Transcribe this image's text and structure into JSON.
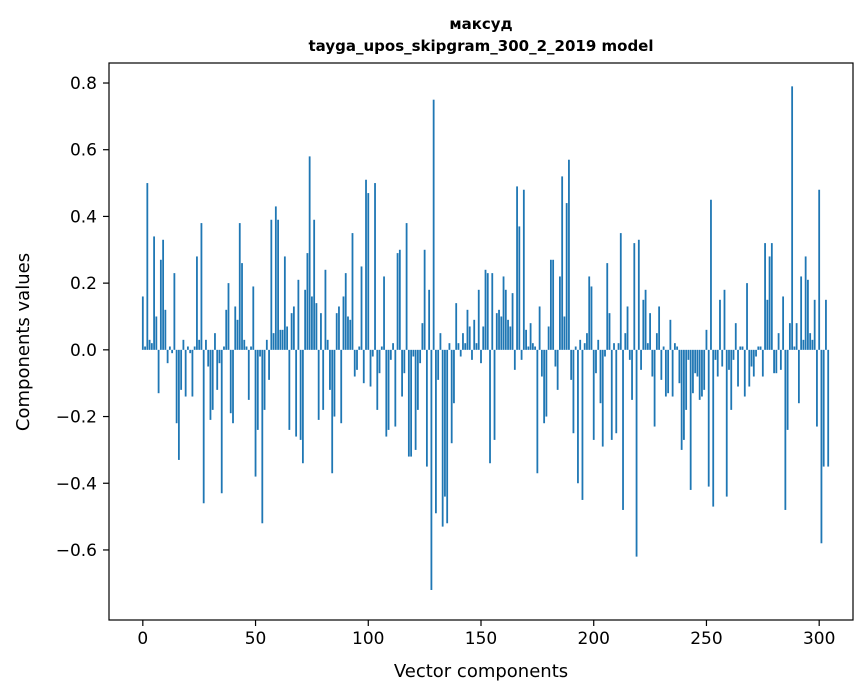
{
  "chart_data": {
    "type": "bar",
    "title": [
      "максуд",
      "tayga_upos_skipgram_300_2_2019 model"
    ],
    "xlabel": "Vector components",
    "ylabel": "Components values",
    "xlim": [
      -15,
      315
    ],
    "ylim": [
      -0.81,
      0.86
    ],
    "xticks": [
      0,
      50,
      100,
      150,
      200,
      250,
      300
    ],
    "xtick_labels": [
      "0",
      "50",
      "100",
      "150",
      "200",
      "250",
      "300"
    ],
    "yticks": [
      -0.6,
      -0.4,
      -0.2,
      0.0,
      0.2,
      0.4,
      0.6,
      0.8
    ],
    "ytick_labels": [
      "−0.6",
      "−0.4",
      "−0.2",
      "0.0",
      "0.2",
      "0.4",
      "0.6",
      "0.8"
    ],
    "grid": false,
    "bar_color": "#1f77b4",
    "x_start": 0,
    "values": [
      0.16,
      0.01,
      0.5,
      0.03,
      0.02,
      0.34,
      0.1,
      -0.13,
      0.27,
      0.33,
      0.12,
      -0.04,
      0.01,
      -0.01,
      0.23,
      -0.22,
      -0.33,
      -0.12,
      0.03,
      -0.14,
      0.01,
      -0.01,
      -0.14,
      0.01,
      0.28,
      0.03,
      0.38,
      -0.46,
      0.03,
      -0.05,
      -0.21,
      -0.18,
      0.05,
      -0.12,
      -0.04,
      -0.43,
      0.01,
      0.12,
      0.2,
      -0.19,
      -0.22,
      0.13,
      0.09,
      0.38,
      0.26,
      0.03,
      0.01,
      -0.15,
      0.01,
      0.19,
      -0.38,
      -0.24,
      -0.02,
      -0.52,
      -0.18,
      0.03,
      -0.09,
      0.39,
      0.05,
      0.43,
      0.39,
      0.06,
      0.06,
      0.28,
      0.07,
      -0.24,
      0.11,
      0.13,
      -0.26,
      0.21,
      -0.27,
      -0.34,
      0.18,
      0.29,
      0.58,
      0.16,
      0.39,
      0.14,
      -0.21,
      0.11,
      -0.18,
      0.24,
      0.03,
      -0.12,
      -0.37,
      -0.2,
      0.11,
      0.13,
      -0.22,
      0.16,
      0.23,
      0.1,
      0.09,
      0.35,
      -0.08,
      -0.06,
      0.01,
      0.25,
      -0.1,
      0.51,
      0.47,
      -0.11,
      -0.02,
      0.5,
      -0.18,
      -0.07,
      0.01,
      0.22,
      -0.26,
      -0.24,
      -0.03,
      0.02,
      -0.23,
      0.29,
      0.3,
      -0.14,
      -0.07,
      0.38,
      -0.32,
      -0.32,
      -0.02,
      -0.3,
      -0.18,
      -0.04,
      0.08,
      0.3,
      -0.35,
      0.18,
      -0.72,
      0.75,
      -0.49,
      -0.09,
      0.05,
      -0.53,
      -0.44,
      -0.52,
      0.02,
      -0.28,
      -0.16,
      0.14,
      0.02,
      -0.02,
      0.05,
      0.02,
      0.12,
      0.07,
      -0.03,
      0.09,
      0.02,
      0.18,
      -0.04,
      0.07,
      0.24,
      0.23,
      -0.34,
      0.23,
      -0.27,
      0.11,
      0.12,
      0.1,
      0.22,
      0.18,
      0.09,
      0.07,
      0.17,
      -0.06,
      0.49,
      0.37,
      -0.03,
      0.48,
      0.06,
      0.01,
      0.08,
      0.02,
      0.01,
      -0.37,
      0.13,
      -0.08,
      -0.22,
      -0.2,
      0.07,
      0.27,
      0.27,
      -0.05,
      -0.12,
      0.22,
      0.52,
      0.1,
      0.44,
      0.57,
      -0.09,
      -0.25,
      0.01,
      -0.4,
      0.03,
      -0.45,
      0.02,
      0.05,
      0.22,
      0.19,
      -0.27,
      -0.07,
      0.03,
      -0.16,
      -0.29,
      -0.02,
      0.26,
      0.11,
      -0.27,
      0.02,
      -0.25,
      0.02,
      0.35,
      -0.48,
      0.05,
      0.13,
      -0.03,
      -0.15,
      0.32,
      -0.62,
      0.33,
      -0.06,
      0.15,
      0.18,
      0.02,
      0.11,
      -0.08,
      -0.23,
      0.05,
      0.13,
      -0.09,
      0.01,
      -0.14,
      -0.13,
      0.09,
      -0.14,
      0.02,
      0.01,
      -0.1,
      -0.3,
      -0.27,
      -0.18,
      -0.03,
      -0.42,
      -0.13,
      -0.07,
      -0.08,
      -0.15,
      -0.14,
      -0.12,
      0.06,
      -0.41,
      0.45,
      -0.47,
      -0.03,
      -0.08,
      0.15,
      -0.05,
      0.18,
      -0.44,
      -0.06,
      -0.18,
      -0.03,
      0.08,
      -0.11,
      0.01,
      0.01,
      -0.14,
      0.2,
      -0.11,
      -0.05,
      -0.08,
      -0.02,
      0.01,
      0.01,
      -0.08,
      0.32,
      0.15,
      0.28,
      0.32,
      -0.07,
      -0.07,
      0.05,
      -0.06,
      0.16,
      -0.48,
      -0.24,
      0.08,
      0.79,
      0.01,
      0.08,
      -0.16,
      0.22,
      0.03,
      0.28,
      0.21,
      0.05,
      0.03,
      0.15,
      -0.23,
      0.48,
      -0.58,
      -0.35,
      0.15,
      -0.35
    ]
  }
}
